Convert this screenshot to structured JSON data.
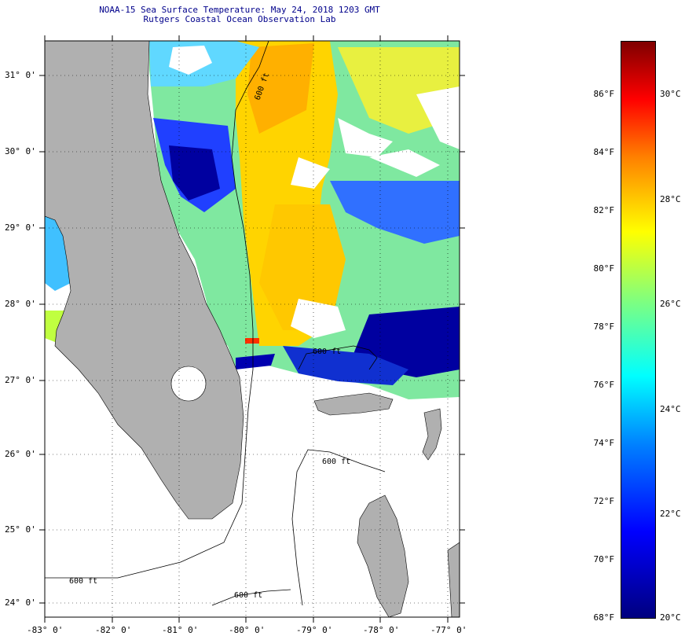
{
  "header": {
    "title_line1": "NOAA-15 Sea Surface Temperature:  May 24, 2018 1203 GMT",
    "title_line2": "Rutgers Coastal Ocean Observation Lab"
  },
  "axes": {
    "lat_labels": [
      "31° 0'",
      "30° 0'",
      "29° 0'",
      "28° 0'",
      "27° 0'",
      "26° 0'",
      "25° 0'",
      "24° 0'"
    ],
    "lon_labels": [
      "-83° 0'",
      "-82° 0'",
      "-81° 0'",
      "-80° 0'",
      "-79° 0'",
      "-78° 0'",
      "-77° 0'"
    ]
  },
  "contours": {
    "label_north": "600 ft",
    "label_east": "600 ft",
    "label_bahamas": "600 ft",
    "label_keys": "600 ft",
    "label_south": "600 ft"
  },
  "colorbar": {
    "fahrenheit": [
      "86°F",
      "84°F",
      "82°F",
      "80°F",
      "78°F",
      "76°F",
      "74°F",
      "72°F",
      "70°F",
      "68°F"
    ],
    "celsius": [
      "30°C",
      "28°C",
      "26°C",
      "24°C",
      "22°C",
      "20°C"
    ]
  },
  "colors": {
    "land": "#b0b0b0",
    "title": "#00008b",
    "warm": "#ffd000",
    "cold": "#0000c0",
    "mid": "#80ff80"
  }
}
